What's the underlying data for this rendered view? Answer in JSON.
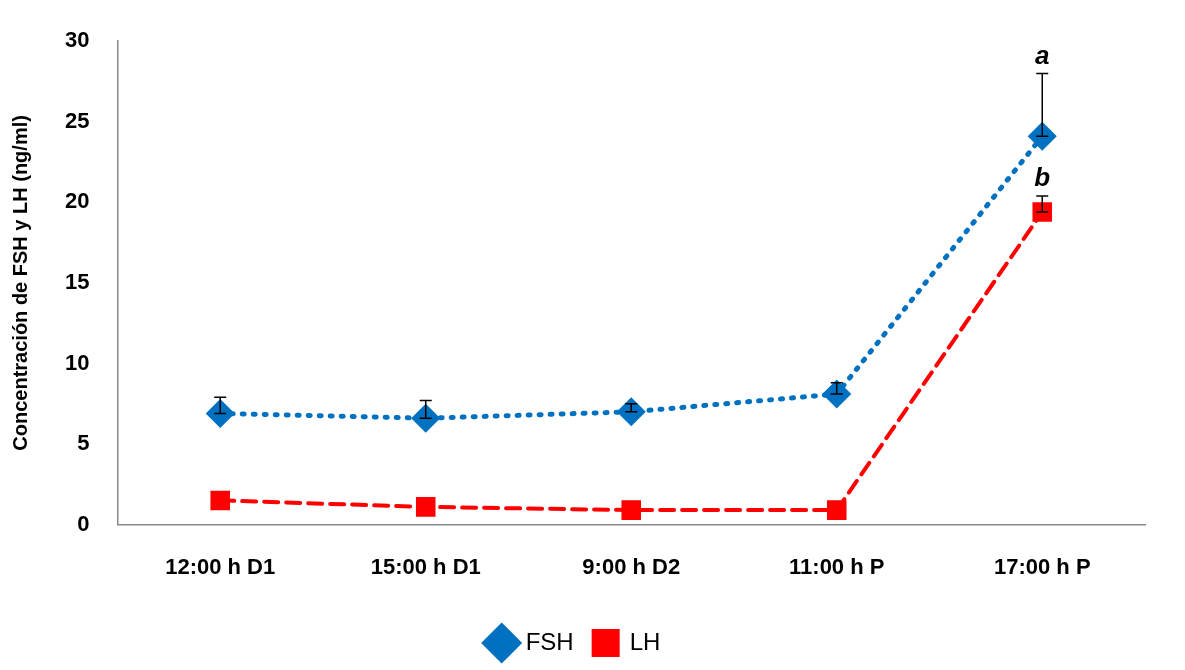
{
  "chart_data": {
    "type": "line",
    "ylabel": "Concentración de FSH y LH (ng/ml)",
    "categories": [
      "12:00 h D1",
      "15:00 h D1",
      "9:00 h D2",
      "11:00 h P",
      "17:00 h P"
    ],
    "series": [
      {
        "name": "FSH",
        "color": "#0070c0",
        "marker": "diamond",
        "line_style": "dotted",
        "values": [
          6.9,
          6.6,
          7.0,
          8.1,
          24.1
        ],
        "errors": [
          [
            6.9,
            7.9
          ],
          [
            6.6,
            7.7
          ],
          [
            7.0,
            7.5
          ],
          [
            8.1,
            8.8
          ],
          [
            24.1,
            28.0
          ]
        ]
      },
      {
        "name": "LH",
        "color": "#ff0000",
        "marker": "square",
        "line_style": "dashed",
        "values": [
          1.5,
          1.1,
          0.9,
          0.9,
          19.4
        ],
        "errors": [
          null,
          null,
          null,
          null,
          [
            19.4,
            20.4
          ]
        ]
      }
    ],
    "ylim": [
      0,
      30
    ],
    "yticks": [
      0,
      5,
      10,
      15,
      20,
      25,
      30
    ],
    "grid": false,
    "legend": "bottom",
    "annotations": [
      "a",
      "b"
    ]
  }
}
